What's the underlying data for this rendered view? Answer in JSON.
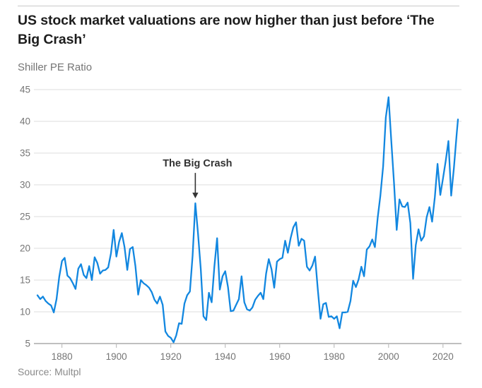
{
  "header": {
    "title": "US stock market valuations are now higher than just before ‘The Big Crash’",
    "subtitle": "Shiller PE Ratio"
  },
  "source": {
    "label": "Source: Multpl"
  },
  "annotation": {
    "label": "The Big Crash",
    "year": 1929,
    "value": 27.1
  },
  "colors": {
    "line": "#1287e0",
    "grid": "#dcdcdc",
    "axis": "#999999",
    "tick": "#b3b3b3",
    "title": "#1d1d1d",
    "secondary": "#757575",
    "source": "#8a8a8a",
    "annotation": "#333333"
  },
  "chart_data": {
    "type": "line",
    "title": "Shiller PE Ratio",
    "xlabel": "",
    "ylabel": "",
    "grid": true,
    "legend": false,
    "xlim": [
      1871,
      2025.5
    ],
    "ylim": [
      5,
      45
    ],
    "xticks": [
      1880,
      1900,
      1920,
      1940,
      1960,
      1980,
      2000,
      2020
    ],
    "yticks": [
      5,
      10,
      15,
      20,
      25,
      30,
      35,
      40,
      45
    ],
    "x": [
      1871,
      1872,
      1873,
      1874,
      1875,
      1876,
      1877,
      1878,
      1879,
      1880,
      1881,
      1882,
      1883,
      1884,
      1885,
      1886,
      1887,
      1888,
      1889,
      1890,
      1891,
      1892,
      1893,
      1894,
      1895,
      1896,
      1897,
      1898,
      1899,
      1900,
      1901,
      1902,
      1903,
      1904,
      1905,
      1906,
      1907,
      1908,
      1909,
      1910,
      1911,
      1912,
      1913,
      1914,
      1915,
      1916,
      1917,
      1918,
      1919,
      1920,
      1921,
      1922,
      1923,
      1924,
      1925,
      1926,
      1927,
      1928,
      1929,
      1930,
      1931,
      1932,
      1933,
      1934,
      1935,
      1936,
      1937,
      1938,
      1939,
      1940,
      1941,
      1942,
      1943,
      1944,
      1945,
      1946,
      1947,
      1948,
      1949,
      1950,
      1951,
      1952,
      1953,
      1954,
      1955,
      1956,
      1957,
      1958,
      1959,
      1960,
      1961,
      1962,
      1963,
      1964,
      1965,
      1966,
      1967,
      1968,
      1969,
      1970,
      1971,
      1972,
      1973,
      1974,
      1975,
      1976,
      1977,
      1978,
      1979,
      1980,
      1981,
      1982,
      1983,
      1984,
      1985,
      1986,
      1987,
      1988,
      1989,
      1990,
      1991,
      1992,
      1993,
      1994,
      1995,
      1996,
      1997,
      1998,
      1999,
      2000,
      2001,
      2002,
      2003,
      2004,
      2005,
      2006,
      2007,
      2008,
      2009,
      2010,
      2011,
      2012,
      2013,
      2014,
      2015,
      2016,
      2017,
      2018,
      2019,
      2020,
      2021,
      2022,
      2023,
      2024,
      2025,
      2025.5
    ],
    "values": [
      12.6,
      12.0,
      12.4,
      11.7,
      11.3,
      11.0,
      9.9,
      12.0,
      15.5,
      18.0,
      18.5,
      15.7,
      15.3,
      14.5,
      13.6,
      16.8,
      17.5,
      15.8,
      15.3,
      17.2,
      15.0,
      18.6,
      17.7,
      16.0,
      16.5,
      16.6,
      17.0,
      19.2,
      22.9,
      18.7,
      21.0,
      22.4,
      20.2,
      16.6,
      19.9,
      20.2,
      17.2,
      12.7,
      15.0,
      14.5,
      14.2,
      13.8,
      13.1,
      11.9,
      11.3,
      12.4,
      11.1,
      6.9,
      6.2,
      5.9,
      5.2,
      6.3,
      8.2,
      8.1,
      11.3,
      12.6,
      13.2,
      18.8,
      27.1,
      22.3,
      16.7,
      9.3,
      8.7,
      13.0,
      11.5,
      17.1,
      21.6,
      13.5,
      15.6,
      16.4,
      13.9,
      10.1,
      10.2,
      11.1,
      12.0,
      15.6,
      11.5,
      10.4,
      10.2,
      10.7,
      11.9,
      12.5,
      13.0,
      12.0,
      16.0,
      18.3,
      16.7,
      13.8,
      17.9,
      18.3,
      18.5,
      21.2,
      19.3,
      21.6,
      23.3,
      24.1,
      20.4,
      21.5,
      21.2,
      17.1,
      16.5,
      17.3,
      18.7,
      13.5,
      8.9,
      11.2,
      11.4,
      9.2,
      9.3,
      8.9,
      9.3,
      7.4,
      9.9,
      9.9,
      10.0,
      11.7,
      14.9,
      13.9,
      15.1,
      17.1,
      15.6,
      19.8,
      20.3,
      21.4,
      20.2,
      24.8,
      28.3,
      32.9,
      40.6,
      43.8,
      37.0,
      30.3,
      22.9,
      27.7,
      26.6,
      26.5,
      27.2,
      24.0,
      15.2,
      20.5,
      23.0,
      21.2,
      21.9,
      24.9,
      26.5,
      24.2,
      28.1,
      33.3,
      28.4,
      31.0,
      33.8,
      36.9,
      28.3,
      32.6,
      37.9,
      40.3
    ]
  }
}
